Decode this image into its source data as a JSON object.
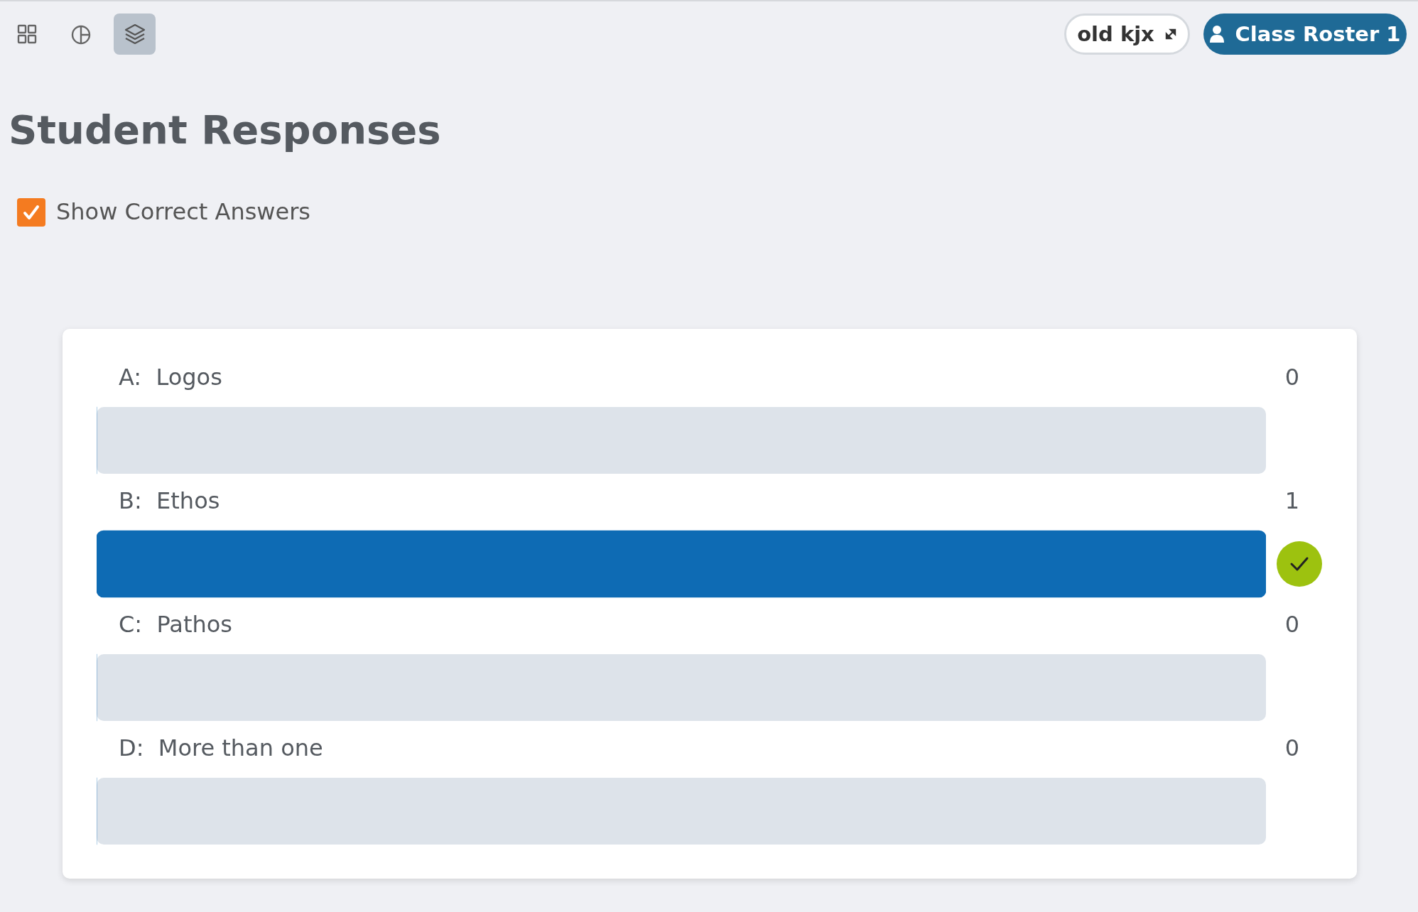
{
  "chart_data": {
    "type": "bar",
    "orientation": "horizontal",
    "title": "Student Responses",
    "categories": [
      "A:  Logos",
      "B:  Ethos",
      "C:  Pathos",
      "D:  More than one"
    ],
    "values": [
      0,
      1,
      0,
      0
    ],
    "colors": [
      "#0e6bb4",
      "#0e6bb4",
      "#0e6bb4",
      "#0e6bb4"
    ],
    "data_labels": true,
    "annotations": [
      "old kjx",
      "Class Roster 1",
      "Show Correct Answers"
    ]
  }
}
